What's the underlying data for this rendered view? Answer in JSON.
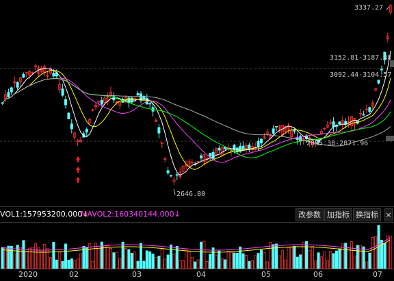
{
  "chart": {
    "high_label": "3337.27",
    "low_label": "2646.80",
    "range_labels": [
      "3152.81-3187.88",
      "3092.44-3104.57",
      "2855.38-2871.96"
    ]
  },
  "indicator": {
    "vol1_text": "VOL1:157953200.000",
    "vol1_arrow": "↓",
    "vol2_text": "MAVOL2:160340144.000",
    "vol2_arrow": "↓"
  },
  "buttons": {
    "params": "改参数",
    "add": "加指标",
    "switch": "换指标",
    "close": "×"
  },
  "xaxis": {
    "labels": [
      "2020",
      "02",
      "03",
      "04",
      "05",
      "06",
      "07"
    ]
  },
  "colors": {
    "up": "#ff3232",
    "down": "#54ffff",
    "ma5": "#ffffff",
    "ma10": "#ffff00",
    "ma20": "#ff44ff",
    "ma30": "#00ff00",
    "ma60": "#aaaaaa",
    "arrow": "#ff2020"
  }
}
